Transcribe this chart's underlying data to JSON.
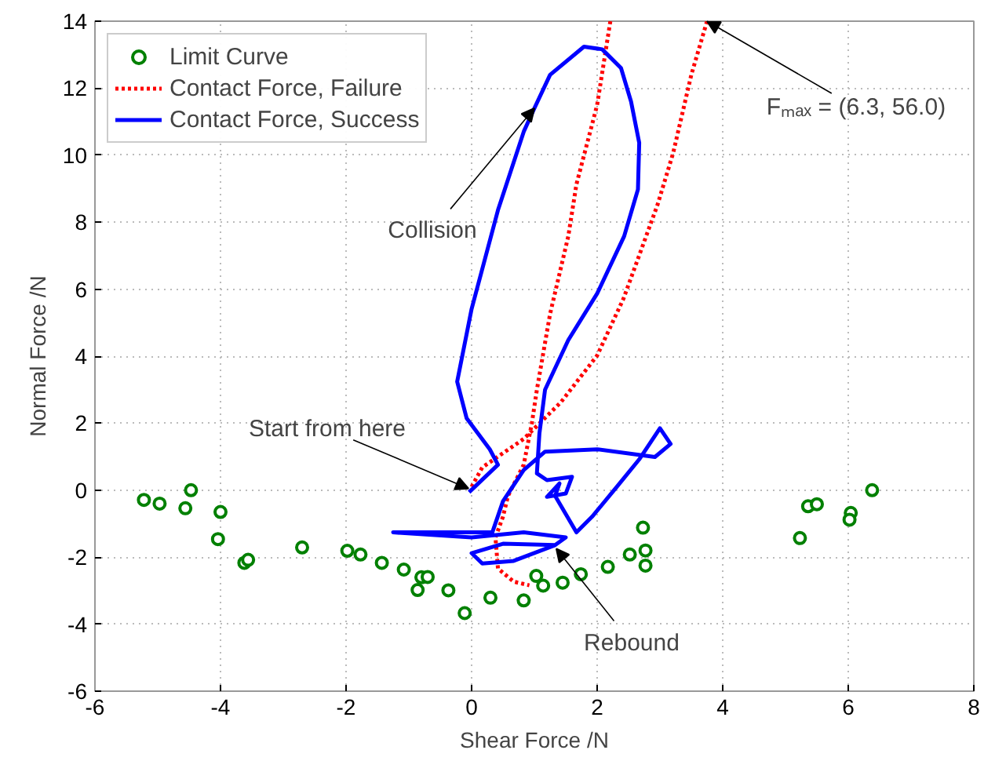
{
  "chart_data": {
    "type": "line",
    "xlabel": "Shear Force /N",
    "ylabel": "Normal Force /N",
    "xlim": [
      -6,
      8
    ],
    "ylim": [
      -6,
      14
    ],
    "xticks": [
      -6,
      -4,
      -2,
      0,
      2,
      4,
      6,
      8
    ],
    "yticks": [
      -6,
      -4,
      -2,
      0,
      2,
      4,
      6,
      8,
      10,
      12,
      14
    ],
    "grid": true,
    "legend": "top left",
    "annotations": [
      {
        "text": "Collision",
        "x": 1.0,
        "y": 11.4
      },
      {
        "text": "Start from here",
        "x": -0.05,
        "y": 0.05
      },
      {
        "text": "Rebound",
        "x": 1.35,
        "y": -1.75
      },
      {
        "text": "Fₘₐₓ = (6.3, 56.0)",
        "x": 3.75,
        "y": 14.0
      }
    ],
    "series": [
      {
        "name": "Limit Curve",
        "type": "scatter",
        "marker": "circle",
        "color": "#008000",
        "x": [
          -5.22,
          -4.97,
          -4.56,
          -4.47,
          -4.0,
          -4.04,
          -3.62,
          -3.56,
          -2.7,
          -1.98,
          -1.77,
          -1.43,
          -1.08,
          -0.8,
          -0.7,
          -0.86,
          -0.37,
          -0.11,
          0.3,
          0.83,
          1.03,
          1.14,
          1.45,
          1.74,
          2.17,
          2.52,
          2.77,
          2.77,
          2.73,
          6.38,
          5.36,
          5.5,
          6.04,
          6.02,
          5.23
        ],
        "values": [
          -0.29,
          -0.4,
          -0.54,
          0.0,
          -0.65,
          -1.46,
          -2.17,
          -2.08,
          -1.71,
          -1.81,
          -1.92,
          -2.17,
          -2.37,
          -2.6,
          -2.59,
          -2.98,
          -2.99,
          -3.67,
          -3.21,
          -3.29,
          -2.56,
          -2.85,
          -2.76,
          -2.51,
          -2.29,
          -1.92,
          -1.8,
          -2.25,
          -1.12,
          0.0,
          -0.48,
          -0.42,
          -0.68,
          -0.88,
          -1.43
        ]
      },
      {
        "name": "Contact Force, Failure",
        "line_style": "dotted",
        "marker": "none",
        "color": "#ff0000",
        "x": [
          0.0,
          0.17,
          0.83,
          1.42,
          2.0,
          2.42,
          2.96,
          3.21,
          3.5,
          3.75,
          null,
          2.21,
          2.0,
          1.67,
          1.54,
          1.25,
          1.04,
          0.96,
          0.83,
          0.58,
          0.5,
          0.38,
          0.42,
          0.67,
          0.92
        ],
        "values": [
          0.1,
          0.68,
          1.53,
          2.62,
          4.02,
          5.72,
          8.51,
          10.06,
          12.4,
          14.0,
          null,
          14.0,
          11.5,
          9.13,
          7.58,
          5.26,
          3.0,
          2.0,
          0.76,
          -0.17,
          -0.79,
          -1.41,
          -2.34,
          -2.73,
          -2.84
        ]
      },
      {
        "name": "Contact Force, Success",
        "line_style": "solid",
        "marker": "none",
        "color": "#0000ff",
        "x": [
          -0.04,
          0.42,
          0.29,
          -0.08,
          -0.23,
          0.0,
          0.42,
          0.83,
          1.0,
          1.25,
          1.79,
          2.08,
          2.38,
          2.54,
          2.67,
          2.65,
          2.43,
          2.0,
          1.54,
          1.17,
          1.08,
          1.04,
          1.2,
          1.6,
          1.5,
          1.2,
          1.4,
          1.33,
          1.67,
          1.92,
          2.33,
          2.67,
          3.0,
          3.17,
          2.92,
          2.0,
          1.17,
          0.83,
          0.5,
          0.33,
          -1.25,
          0.0,
          0.83,
          1.5,
          1.33,
          0.67,
          0.17,
          0.0,
          0.5,
          1.33
        ],
        "values": [
          -0.06,
          0.76,
          1.22,
          2.15,
          3.24,
          5.41,
          8.36,
          10.7,
          11.4,
          12.4,
          13.24,
          13.16,
          12.6,
          11.6,
          10.37,
          8.98,
          7.58,
          5.87,
          4.48,
          3.0,
          1.69,
          0.5,
          0.3,
          0.4,
          -0.1,
          -0.2,
          0.2,
          -0.17,
          -1.26,
          -0.79,
          0.14,
          0.92,
          1.85,
          1.38,
          0.99,
          1.22,
          1.15,
          0.6,
          -0.33,
          -1.26,
          -1.26,
          -1.41,
          -1.26,
          -1.41,
          -1.64,
          -2.11,
          -2.19,
          -1.88,
          -1.6,
          -1.64
        ]
      }
    ]
  }
}
